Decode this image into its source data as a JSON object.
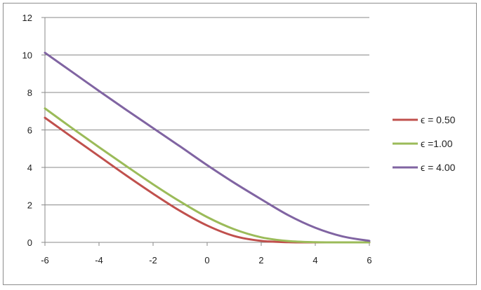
{
  "chart_data": {
    "type": "line",
    "title": "",
    "xlabel": "",
    "ylabel": "",
    "xlim": [
      -6,
      6
    ],
    "ylim": [
      0,
      12
    ],
    "x_ticks": [
      "-6",
      "-4",
      "-2",
      "0",
      "2",
      "4",
      "6"
    ],
    "y_ticks": [
      "0",
      "2",
      "4",
      "6",
      "8",
      "10",
      "12"
    ],
    "grid": "horizontal",
    "legend_position": "right",
    "x": [
      -6,
      -5,
      -4,
      -3,
      -2,
      -1,
      0,
      1,
      2,
      3,
      4,
      5,
      6
    ],
    "series": [
      {
        "name": "ϵ = 0.50",
        "color": "#c0504d",
        "values": [
          6.65,
          5.62,
          4.6,
          3.58,
          2.6,
          1.68,
          0.9,
          0.34,
          0.08,
          0.01,
          0.0,
          0.0,
          0.0
        ]
      },
      {
        "name": "ϵ =1.00",
        "color": "#9bbb59",
        "values": [
          7.15,
          6.1,
          5.08,
          4.08,
          3.1,
          2.18,
          1.35,
          0.7,
          0.27,
          0.07,
          0.01,
          0.0,
          0.0
        ]
      },
      {
        "name": "ϵ = 4.00",
        "color": "#8064a2",
        "values": [
          10.12,
          9.1,
          8.08,
          7.08,
          6.1,
          5.12,
          4.12,
          3.18,
          2.3,
          1.45,
          0.78,
          0.32,
          0.08
        ]
      }
    ]
  }
}
